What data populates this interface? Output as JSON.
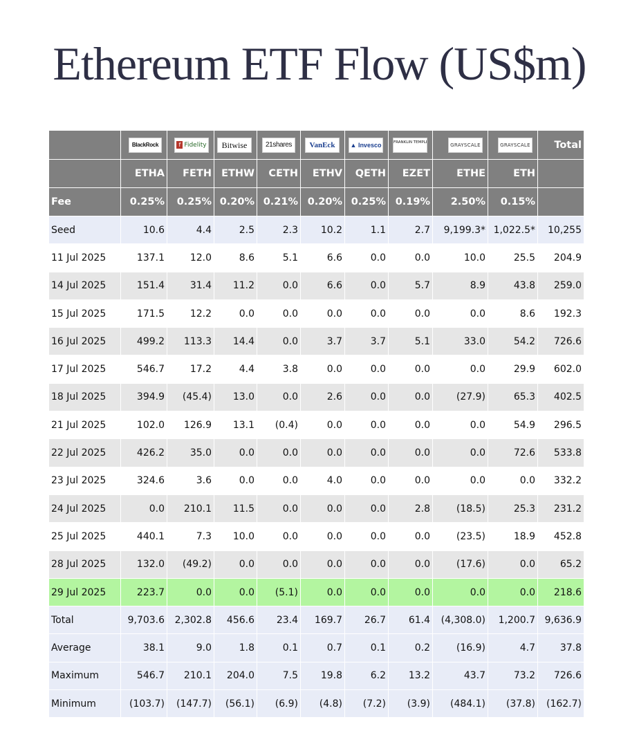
{
  "title": "Ethereum ETF Flow (US$m)",
  "colors": {
    "header_bg": "#808080",
    "negative": "#e03a2e",
    "highlight": "#b3f5a0",
    "summary_bg": "#e8ecf7",
    "alt_row": "#e6e6e6"
  },
  "header": {
    "total_label": "Total",
    "fee_label": "Fee",
    "issuers": [
      {
        "logo": "BlackRock",
        "ticker": "ETHA",
        "fee": "0.25%"
      },
      {
        "logo": "Fidelity",
        "ticker": "FETH",
        "fee": "0.25%"
      },
      {
        "logo": "Bitwise",
        "ticker": "ETHW",
        "fee": "0.20%"
      },
      {
        "logo": "21shares",
        "ticker": "CETH",
        "fee": "0.21%"
      },
      {
        "logo": "VanEck",
        "ticker": "ETHV",
        "fee": "0.20%"
      },
      {
        "logo": "Invesco",
        "ticker": "QETH",
        "fee": "0.25%"
      },
      {
        "logo": "FRANKLIN TEMPLETON",
        "ticker": "EZET",
        "fee": "0.19%"
      },
      {
        "logo": "GRAYSCALE",
        "ticker": "ETHE",
        "fee": "2.50%"
      },
      {
        "logo": "GRAYSCALE",
        "ticker": "ETH",
        "fee": "0.15%"
      }
    ]
  },
  "rows": [
    {
      "label": "Seed",
      "cells": [
        "10.6",
        "4.4",
        "2.5",
        "2.3",
        "10.2",
        "1.1",
        "2.7",
        "9,199.3*",
        "1,022.5*",
        "10,255"
      ]
    },
    {
      "label": "11 Jul 2025",
      "cells": [
        "137.1",
        "12.0",
        "8.6",
        "5.1",
        "6.6",
        "0.0",
        "0.0",
        "10.0",
        "25.5",
        "204.9"
      ]
    },
    {
      "label": "14 Jul 2025",
      "cells": [
        "151.4",
        "31.4",
        "11.2",
        "0.0",
        "6.6",
        "0.0",
        "5.7",
        "8.9",
        "43.8",
        "259.0"
      ]
    },
    {
      "label": "15 Jul 2025",
      "cells": [
        "171.5",
        "12.2",
        "0.0",
        "0.0",
        "0.0",
        "0.0",
        "0.0",
        "0.0",
        "8.6",
        "192.3"
      ]
    },
    {
      "label": "16 Jul 2025",
      "cells": [
        "499.2",
        "113.3",
        "14.4",
        "0.0",
        "3.7",
        "3.7",
        "5.1",
        "33.0",
        "54.2",
        "726.6"
      ]
    },
    {
      "label": "17 Jul 2025",
      "cells": [
        "546.7",
        "17.2",
        "4.4",
        "3.8",
        "0.0",
        "0.0",
        "0.0",
        "0.0",
        "29.9",
        "602.0"
      ]
    },
    {
      "label": "18 Jul 2025",
      "cells": [
        "394.9",
        "(45.4)",
        "13.0",
        "0.0",
        "2.6",
        "0.0",
        "0.0",
        "(27.9)",
        "65.3",
        "402.5"
      ]
    },
    {
      "label": "21 Jul 2025",
      "cells": [
        "102.0",
        "126.9",
        "13.1",
        "(0.4)",
        "0.0",
        "0.0",
        "0.0",
        "0.0",
        "54.9",
        "296.5"
      ]
    },
    {
      "label": "22 Jul 2025",
      "cells": [
        "426.2",
        "35.0",
        "0.0",
        "0.0",
        "0.0",
        "0.0",
        "0.0",
        "0.0",
        "72.6",
        "533.8"
      ]
    },
    {
      "label": "23 Jul 2025",
      "cells": [
        "324.6",
        "3.6",
        "0.0",
        "0.0",
        "4.0",
        "0.0",
        "0.0",
        "0.0",
        "0.0",
        "332.2"
      ]
    },
    {
      "label": "24 Jul 2025",
      "cells": [
        "0.0",
        "210.1",
        "11.5",
        "0.0",
        "0.0",
        "0.0",
        "2.8",
        "(18.5)",
        "25.3",
        "231.2"
      ]
    },
    {
      "label": "25 Jul 2025",
      "cells": [
        "440.1",
        "7.3",
        "10.0",
        "0.0",
        "0.0",
        "0.0",
        "0.0",
        "(23.5)",
        "18.9",
        "452.8"
      ]
    },
    {
      "label": "28 Jul 2025",
      "cells": [
        "132.0",
        "(49.2)",
        "0.0",
        "0.0",
        "0.0",
        "0.0",
        "0.0",
        "(17.6)",
        "0.0",
        "65.2"
      ]
    },
    {
      "label": "29 Jul 2025",
      "cells": [
        "223.7",
        "0.0",
        "0.0",
        "(5.1)",
        "0.0",
        "0.0",
        "0.0",
        "0.0",
        "0.0",
        "218.6"
      ]
    },
    {
      "label": "Total",
      "cells": [
        "9,703.6",
        "2,302.8",
        "456.6",
        "23.4",
        "169.7",
        "26.7",
        "61.4",
        "(4,308.0)",
        "1,200.7",
        "9,636.9"
      ]
    },
    {
      "label": "Average",
      "cells": [
        "38.1",
        "9.0",
        "1.8",
        "0.1",
        "0.7",
        "0.1",
        "0.2",
        "(16.9)",
        "4.7",
        "37.8"
      ]
    },
    {
      "label": "Maximum",
      "cells": [
        "546.7",
        "210.1",
        "204.0",
        "7.5",
        "19.8",
        "6.2",
        "13.2",
        "43.7",
        "73.2",
        "726.6"
      ]
    },
    {
      "label": "Minimum",
      "cells": [
        "(103.7)",
        "(147.7)",
        "(56.1)",
        "(6.9)",
        "(4.8)",
        "(7.2)",
        "(3.9)",
        "(484.1)",
        "(37.8)",
        "(162.7)"
      ]
    }
  ]
}
